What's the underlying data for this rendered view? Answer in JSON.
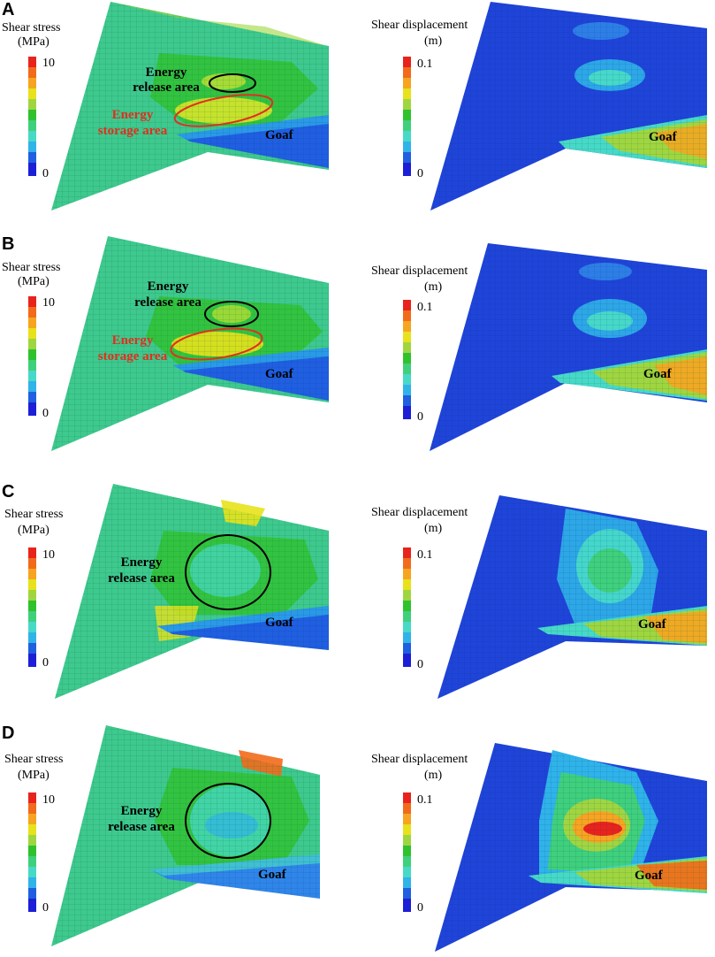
{
  "panels": [
    {
      "letter": "A",
      "stress_title_line1": "Shear stress",
      "stress_title_line2": "(MPa)",
      "stress_max": "10",
      "stress_min": "0",
      "disp_title_line1": "Shear displacement",
      "disp_title_line2": "(m)",
      "disp_max": "0.1",
      "disp_min": "0",
      "release_line1": "Energy",
      "release_line2": "release area",
      "storage_line1": "Energy",
      "storage_line2": "storage area",
      "goaf_left": "Goaf",
      "goaf_right": "Goaf"
    },
    {
      "letter": "B",
      "stress_title_line1": "Shear stress",
      "stress_title_line2": "(MPa)",
      "stress_max": "10",
      "stress_min": "0",
      "disp_title_line1": "Shear displacement",
      "disp_title_line2": "(m)",
      "disp_max": "0.1",
      "disp_min": "0",
      "release_line1": "Energy",
      "release_line2": "release area",
      "storage_line1": "Energy",
      "storage_line2": "storage area",
      "goaf_left": "Goaf",
      "goaf_right": "Goaf"
    },
    {
      "letter": "C",
      "stress_title_line1": "Shear stress",
      "stress_title_line2": "(MPa)",
      "stress_max": "10",
      "stress_min": "0",
      "disp_title_line1": "Shear displacement",
      "disp_title_line2": "(m)",
      "disp_max": "0.1",
      "disp_min": "0",
      "release_line1": "Energy",
      "release_line2": "release area",
      "goaf_left": "Goaf",
      "goaf_right": "Goaf"
    },
    {
      "letter": "D",
      "stress_title_line1": "Shear stress",
      "stress_title_line2": "(MPa)",
      "stress_max": "10",
      "stress_min": "0",
      "disp_title_line1": "Shear displacement",
      "disp_title_line2": "(m)",
      "disp_max": "0.1",
      "disp_min": "0",
      "release_line1": "Energy",
      "release_line2": "release area",
      "goaf_left": "Goaf",
      "goaf_right": "Goaf"
    }
  ],
  "colors": {
    "colorbar": [
      "#e8231c",
      "#f26a1b",
      "#f7a420",
      "#e7e21b",
      "#9fd640",
      "#2fc22d",
      "#3fd07b",
      "#47d9c8",
      "#2fb3e8",
      "#1f5fe0",
      "#1c1fd6"
    ],
    "stress_base": "#3ec98e",
    "disp_base": "#1f44d8",
    "release_ellipse": "#000000",
    "storage_ellipse": "#e0301e",
    "storage_text": "#e0301e"
  }
}
